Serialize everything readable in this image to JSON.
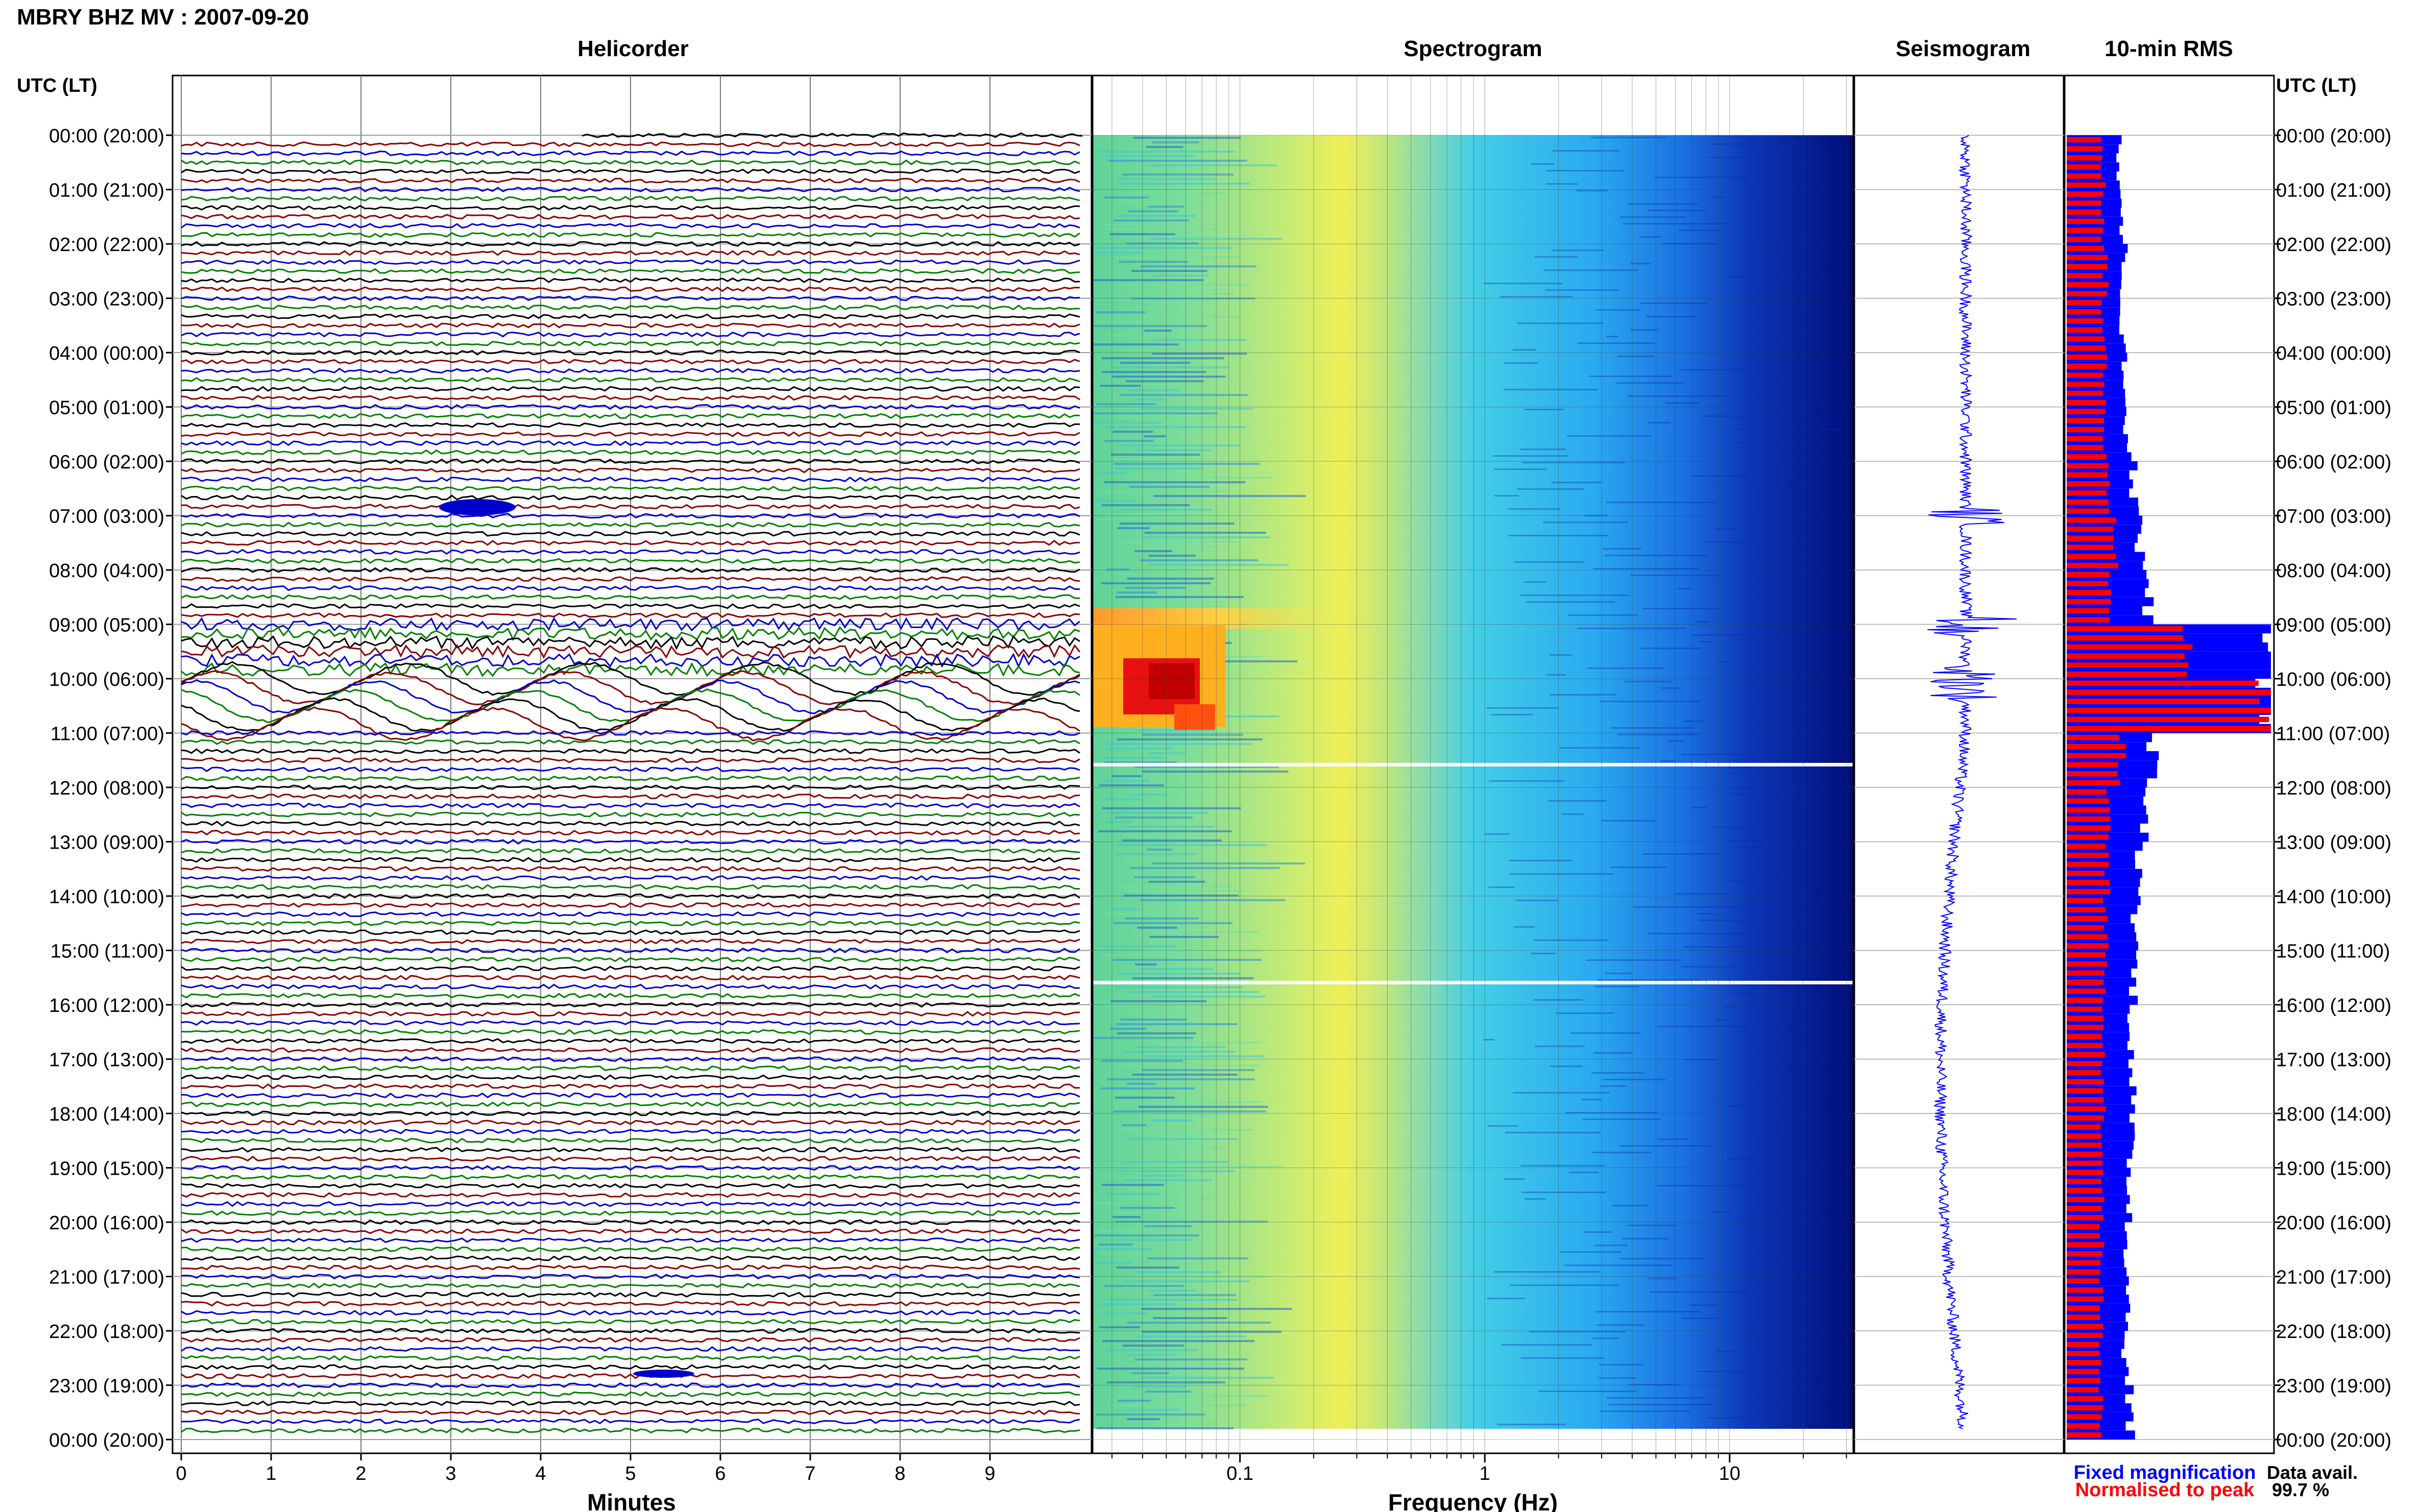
{
  "title": "MBRY BHZ MV : 2007-09-20",
  "panels": {
    "helicorder": "Helicorder",
    "spectrogram": "Spectrogram",
    "seismogram": "Seismogram",
    "rms": "10-min RMS"
  },
  "time_axis_label": "UTC (LT)",
  "time_labels": [
    "00:00 (20:00)",
    "01:00 (21:00)",
    "02:00 (22:00)",
    "03:00 (23:00)",
    "04:00 (00:00)",
    "05:00 (01:00)",
    "06:00 (02:00)",
    "07:00 (03:00)",
    "08:00 (04:00)",
    "09:00 (05:00)",
    "10:00 (06:00)",
    "11:00 (07:00)",
    "12:00 (08:00)",
    "13:00 (09:00)",
    "14:00 (10:00)",
    "15:00 (11:00)",
    "16:00 (12:00)",
    "17:00 (13:00)",
    "18:00 (14:00)",
    "19:00 (15:00)",
    "20:00 (16:00)",
    "21:00 (17:00)",
    "22:00 (18:00)",
    "23:00 (19:00)",
    "00:00 (20:00)"
  ],
  "helicorder_axis": {
    "label": "Minutes",
    "ticks": [
      "0",
      "1",
      "2",
      "3",
      "4",
      "5",
      "6",
      "7",
      "8",
      "9"
    ]
  },
  "spectrogram_axis": {
    "label": "Frequency (Hz)",
    "ticks": [
      "0.1",
      "1",
      "10"
    ],
    "scale": "log"
  },
  "legend": {
    "fixed": "Fixed magnification",
    "normalised": "Normalised to peak",
    "fixed_color": "#0000ff",
    "normalised_color": "#ff0000"
  },
  "availability": {
    "label": "Data avail.",
    "value": "99.7 %"
  },
  "colors": {
    "trace_cycle": [
      "#000000",
      "#8b0000",
      "#0000cd",
      "#008000"
    ]
  },
  "chart_data": {
    "type": "heatmap",
    "rms_hourly_fixed": [
      0.26,
      0.27,
      0.28,
      0.27,
      0.28,
      0.3,
      0.33,
      0.36,
      0.4,
      1.0,
      1.0,
      0.42,
      0.38,
      0.36,
      0.34,
      0.33,
      0.32,
      0.32,
      0.31,
      0.31,
      0.3,
      0.3,
      0.29,
      0.31
    ],
    "rms_hourly_normalised": [
      0.18,
      0.18,
      0.19,
      0.18,
      0.19,
      0.19,
      0.2,
      0.24,
      0.22,
      0.58,
      1.0,
      0.27,
      0.2,
      0.2,
      0.19,
      0.19,
      0.18,
      0.18,
      0.18,
      0.18,
      0.17,
      0.17,
      0.17,
      0.17
    ]
  }
}
